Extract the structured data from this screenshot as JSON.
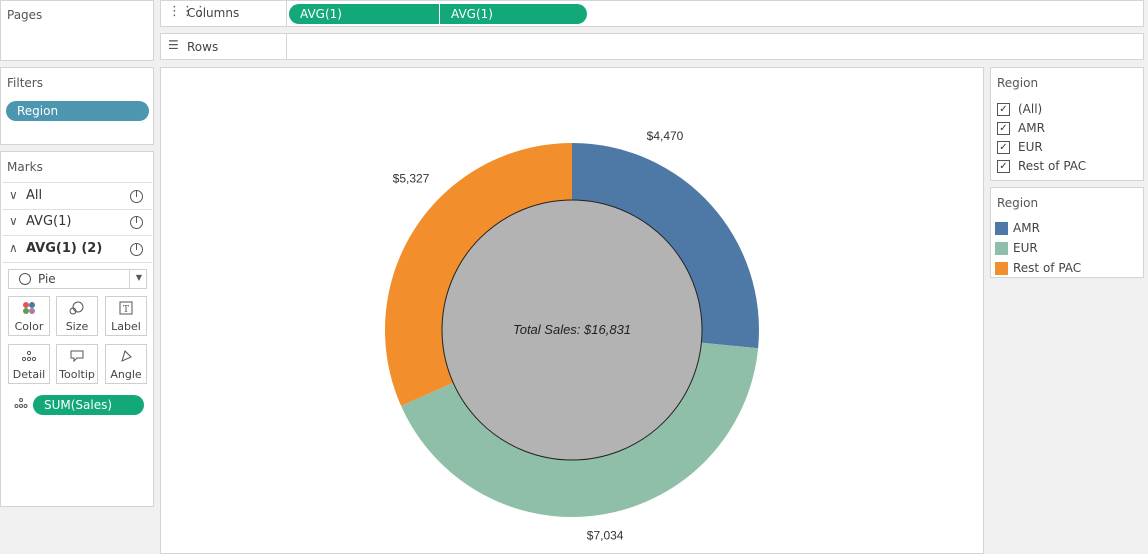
{
  "pages": {
    "title": "Pages"
  },
  "columns_shelf": {
    "label": "Columns",
    "pills": [
      "AVG(1)",
      "AVG(1)"
    ]
  },
  "rows_shelf": {
    "label": "Rows"
  },
  "filters": {
    "title": "Filters",
    "pills": [
      "Region"
    ]
  },
  "marks": {
    "title": "Marks",
    "layers": [
      {
        "label": "All",
        "expanded": false
      },
      {
        "label": "AVG(1)",
        "expanded": false
      },
      {
        "label": "AVG(1) (2)",
        "expanded": true
      }
    ],
    "mark_type": "Pie",
    "cards": [
      "Color",
      "Size",
      "Label",
      "Detail",
      "Tooltip",
      "Angle"
    ],
    "detail_pill": "SUM(Sales)"
  },
  "region_filter": {
    "title": "Region",
    "items": [
      {
        "label": "(All)",
        "checked": true
      },
      {
        "label": "AMR",
        "checked": true
      },
      {
        "label": "EUR",
        "checked": true
      },
      {
        "label": "Rest of PAC",
        "checked": true
      }
    ]
  },
  "region_legend": {
    "title": "Region",
    "items": [
      {
        "label": "AMR",
        "color": "#4e79a7"
      },
      {
        "label": "EUR",
        "color": "#8fbfa8"
      },
      {
        "label": "Rest of PAC",
        "color": "#f28e2b"
      }
    ]
  },
  "colors": {
    "green_pill": "#13a879",
    "blue_pill": "#4d96b0",
    "center_fill": "#b3b3b3"
  },
  "chart_data": {
    "type": "pie",
    "variant": "donut",
    "categories": [
      "AMR",
      "EUR",
      "Rest of PAC"
    ],
    "values": [
      4470,
      7034,
      5327
    ],
    "labels": [
      "$4,470",
      "$7,034",
      "$5,327"
    ],
    "colors": [
      "#4e79a7",
      "#8fbfa8",
      "#f28e2b"
    ],
    "center_label": "Total Sales: $16,831"
  }
}
